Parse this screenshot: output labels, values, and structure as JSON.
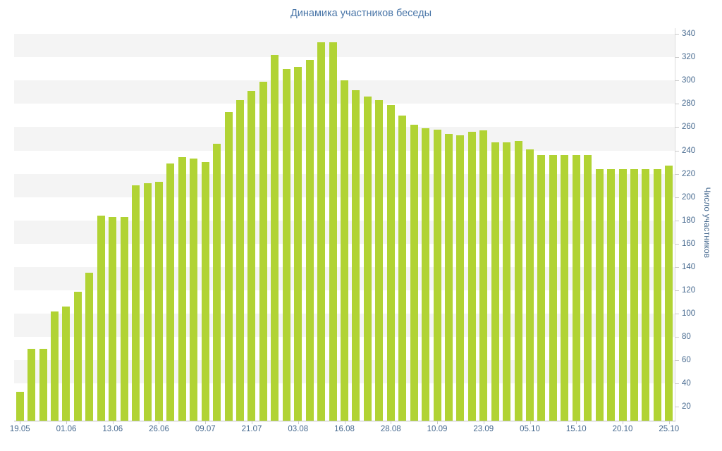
{
  "chart_data": {
    "type": "bar",
    "title": "Динамика участников беседы",
    "ylabel": "Число участников",
    "xlabel": "",
    "n_bars": 57,
    "values": [
      33,
      70,
      70,
      102,
      106,
      119,
      135,
      184,
      183,
      183,
      210,
      212,
      213,
      229,
      234,
      233,
      230,
      246,
      273,
      283,
      291,
      299,
      322,
      310,
      312,
      318,
      333,
      333,
      300,
      292,
      286,
      283,
      279,
      270,
      262,
      259,
      258,
      254,
      253,
      256,
      257,
      247,
      247,
      248,
      241,
      236,
      236,
      236,
      236,
      236,
      224,
      224,
      224,
      224,
      224,
      224,
      227
    ],
    "x_ticks": {
      "indices": [
        0,
        4,
        8,
        12,
        16,
        20,
        24,
        28,
        32,
        36,
        40,
        44,
        48,
        52,
        56
      ],
      "labels": [
        "19.05",
        "01.06",
        "13.06",
        "26.06",
        "09.07",
        "21.07",
        "03.08",
        "16.08",
        "28.08",
        "10.09",
        "23.09",
        "05.10",
        "15.10",
        "20.10",
        "25.10"
      ]
    },
    "yticks": [
      20,
      40,
      60,
      80,
      100,
      120,
      140,
      160,
      180,
      200,
      220,
      240,
      260,
      280,
      300,
      320,
      340
    ],
    "ylim": [
      8,
      348
    ],
    "grid": "alternating-horizontal-bands",
    "legend": "none",
    "colors": {
      "bar": "#b1d334",
      "band": "#f4f4f4",
      "title_text": "#4a76a8",
      "axis_text": "#45688e",
      "axis_line": "#bcbcbc"
    }
  }
}
